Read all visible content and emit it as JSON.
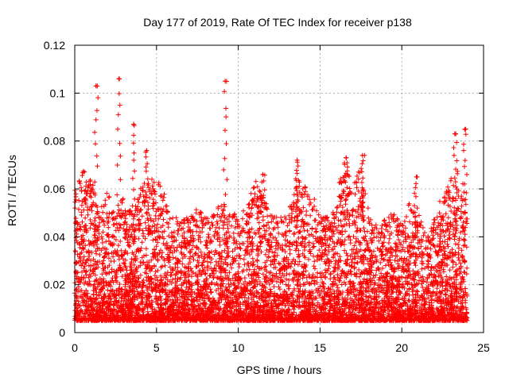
{
  "chart_data": {
    "type": "scatter",
    "title": "Day 177 of 2019, Rate Of TEC Index for receiver p138",
    "xlabel": "GPS time / hours",
    "ylabel": "ROTI / TECUs",
    "xlim": [
      0,
      25
    ],
    "ylim": [
      0,
      0.12
    ],
    "grid": true,
    "marker": "plus",
    "series_color": "#ff0000",
    "x_ticks": [
      0,
      5,
      10,
      15,
      20,
      25
    ],
    "x_tick_labels": [
      "0",
      "5",
      "10",
      "15",
      "20",
      "25"
    ],
    "y_ticks": [
      0,
      0.02,
      0.04,
      0.06,
      0.08,
      0.1,
      0.12
    ],
    "y_tick_labels": [
      "0",
      "0.02",
      "0.04",
      "0.06",
      "0.08",
      "0.1",
      "0.12"
    ],
    "envelope": {
      "description": "Upper envelope of dense ROTI scatter (hours, ROTI)",
      "x": [
        0,
        0.5,
        1,
        1.5,
        2,
        2.5,
        3,
        3.5,
        4,
        4.5,
        5,
        5.5,
        6,
        6.5,
        7,
        7.5,
        8,
        8.5,
        9,
        9.5,
        10,
        10.5,
        11,
        11.5,
        12,
        12.5,
        13,
        13.5,
        14,
        14.5,
        15,
        15.5,
        16,
        16.5,
        17,
        17.5,
        18,
        18.5,
        19,
        19.5,
        20,
        20.5,
        21,
        21.5,
        22,
        22.5,
        23,
        23.5,
        24
      ],
      "y": [
        0.06,
        0.068,
        0.065,
        0.05,
        0.06,
        0.05,
        0.058,
        0.05,
        0.06,
        0.065,
        0.064,
        0.06,
        0.048,
        0.048,
        0.05,
        0.052,
        0.05,
        0.05,
        0.055,
        0.05,
        0.05,
        0.052,
        0.065,
        0.058,
        0.05,
        0.048,
        0.05,
        0.065,
        0.062,
        0.06,
        0.05,
        0.048,
        0.06,
        0.072,
        0.062,
        0.07,
        0.05,
        0.045,
        0.048,
        0.05,
        0.045,
        0.055,
        0.05,
        0.04,
        0.05,
        0.058,
        0.065,
        0.068,
        0.06
      ]
    },
    "spikes": [
      {
        "x": 1.3,
        "y": 0.103
      },
      {
        "x": 2.7,
        "y": 0.106
      },
      {
        "x": 3.6,
        "y": 0.087
      },
      {
        "x": 4.4,
        "y": 0.076
      },
      {
        "x": 9.2,
        "y": 0.105
      },
      {
        "x": 11.5,
        "y": 0.066
      },
      {
        "x": 13.6,
        "y": 0.072
      },
      {
        "x": 16.6,
        "y": 0.073
      },
      {
        "x": 17.6,
        "y": 0.074
      },
      {
        "x": 20.9,
        "y": 0.065
      },
      {
        "x": 23.3,
        "y": 0.083
      },
      {
        "x": 23.9,
        "y": 0.085
      }
    ]
  }
}
